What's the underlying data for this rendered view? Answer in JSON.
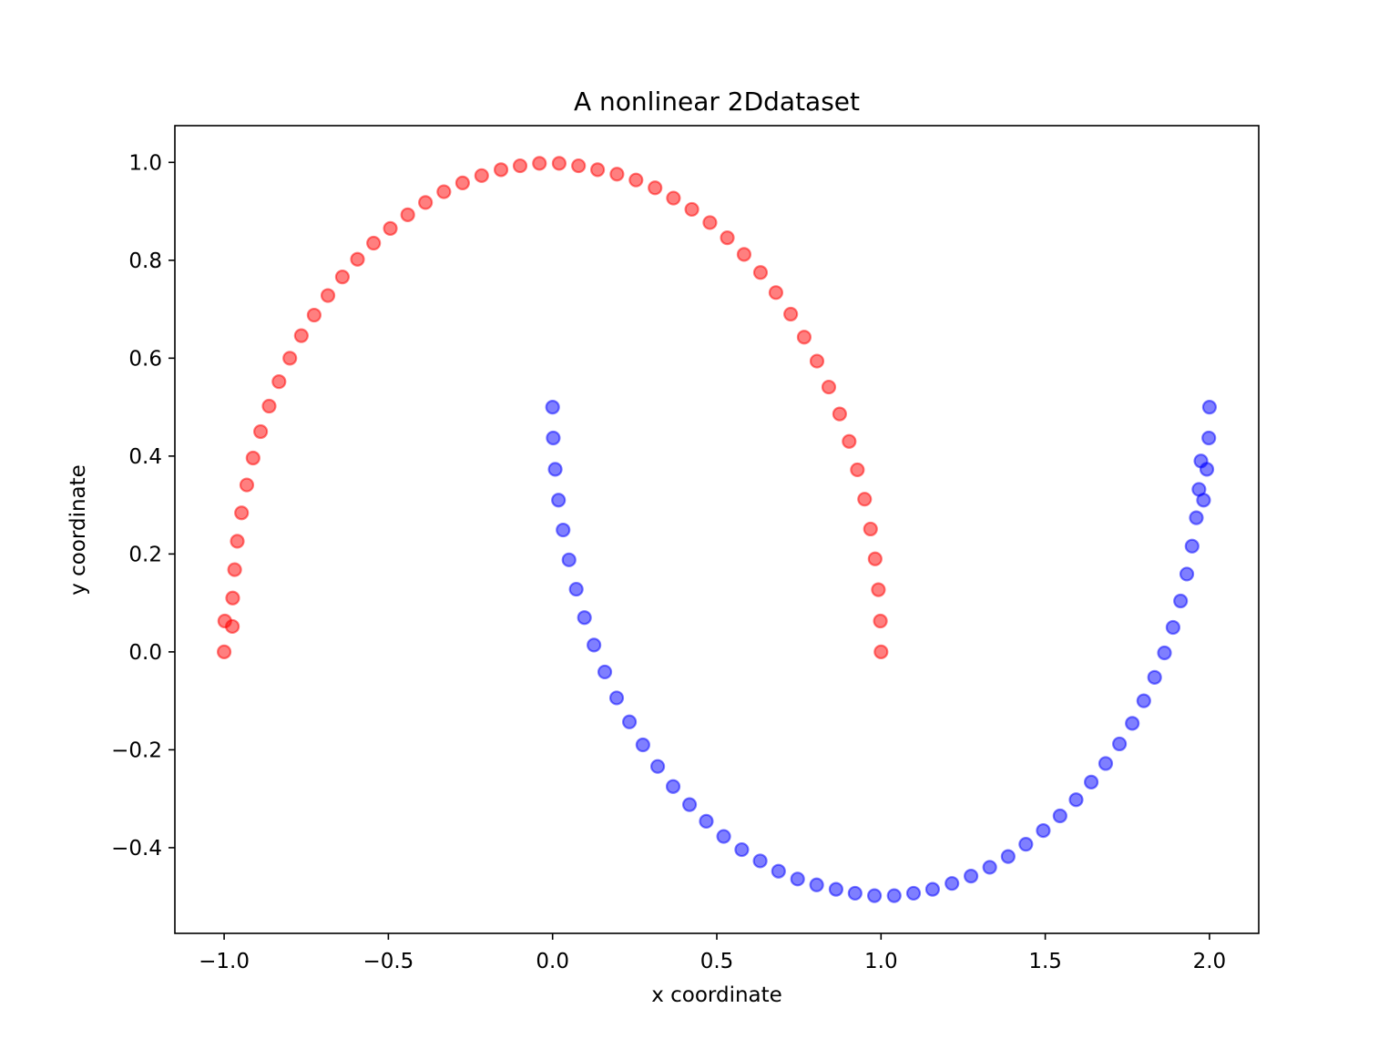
{
  "chart_data": {
    "type": "scatter",
    "title": "A nonlinear 2Ddataset",
    "xlabel": "x coordinate",
    "ylabel": "y coordinate",
    "xlim": [
      -1.15,
      2.15
    ],
    "ylim": [
      -0.575,
      1.075
    ],
    "grid": false,
    "xticks": [
      -1.0,
      -0.5,
      0.0,
      0.5,
      1.0,
      1.5,
      2.0
    ],
    "xtick_labels": [
      "−1.0",
      "−0.5",
      "0.0",
      "0.5",
      "1.0",
      "1.5",
      "2.0"
    ],
    "yticks": [
      -0.4,
      -0.2,
      0.0,
      0.2,
      0.4,
      0.6,
      0.8,
      1.0
    ],
    "ytick_labels": [
      "−0.4",
      "−0.2",
      "0.0",
      "0.2",
      "0.4",
      "0.6",
      "0.8",
      "1.0"
    ],
    "series": [
      {
        "color": "#ff0000",
        "alpha": 0.5,
        "x": [
          1.0,
          0.998,
          0.992,
          0.982,
          0.968,
          0.95,
          0.928,
          0.903,
          0.874,
          0.841,
          0.805,
          0.766,
          0.725,
          0.68,
          0.633,
          0.583,
          0.532,
          0.479,
          0.424,
          0.368,
          0.312,
          0.254,
          0.196,
          0.137,
          0.079,
          0.02,
          -0.04,
          -0.099,
          -0.157,
          -0.216,
          -0.274,
          -0.331,
          -0.387,
          -0.441,
          -0.494,
          -0.545,
          -0.594,
          -0.64,
          -0.684,
          -0.726,
          -0.765,
          -0.8,
          -0.833,
          -0.863,
          -0.889,
          -0.912,
          -0.931,
          -0.947,
          -0.96,
          -0.968,
          -0.974,
          -0.975,
          -0.998,
          -1.0
        ],
        "y": [
          0.0,
          0.063,
          0.127,
          0.19,
          0.251,
          0.312,
          0.372,
          0.43,
          0.486,
          0.541,
          0.594,
          0.643,
          0.69,
          0.734,
          0.775,
          0.812,
          0.846,
          0.877,
          0.904,
          0.927,
          0.948,
          0.964,
          0.976,
          0.985,
          0.993,
          0.998,
          0.998,
          0.993,
          0.985,
          0.973,
          0.958,
          0.94,
          0.918,
          0.893,
          0.865,
          0.835,
          0.802,
          0.766,
          0.728,
          0.688,
          0.646,
          0.6,
          0.552,
          0.502,
          0.45,
          0.396,
          0.341,
          0.284,
          0.226,
          0.168,
          0.11,
          0.052,
          0.063,
          0.0
        ]
      },
      {
        "color": "#0000ff",
        "alpha": 0.5,
        "x": [
          0.0,
          0.002,
          0.008,
          0.018,
          0.032,
          0.05,
          0.072,
          0.097,
          0.126,
          0.159,
          0.195,
          0.234,
          0.275,
          0.32,
          0.367,
          0.417,
          0.468,
          0.521,
          0.576,
          0.632,
          0.688,
          0.746,
          0.804,
          0.863,
          0.921,
          0.98,
          1.04,
          1.099,
          1.157,
          1.216,
          1.274,
          1.331,
          1.387,
          1.441,
          1.494,
          1.545,
          1.594,
          1.64,
          1.684,
          1.726,
          1.765,
          1.8,
          1.833,
          1.863,
          1.889,
          1.912,
          1.931,
          1.947,
          1.96,
          1.968,
          1.974,
          1.982,
          1.992,
          1.998,
          2.0
        ],
        "y": [
          0.5,
          0.437,
          0.373,
          0.31,
          0.249,
          0.188,
          0.128,
          0.07,
          0.014,
          -0.041,
          -0.094,
          -0.143,
          -0.19,
          -0.234,
          -0.275,
          -0.312,
          -0.346,
          -0.377,
          -0.404,
          -0.427,
          -0.448,
          -0.464,
          -0.476,
          -0.485,
          -0.493,
          -0.498,
          -0.498,
          -0.493,
          -0.485,
          -0.473,
          -0.458,
          -0.44,
          -0.418,
          -0.393,
          -0.365,
          -0.335,
          -0.302,
          -0.266,
          -0.228,
          -0.188,
          -0.146,
          -0.1,
          -0.052,
          -0.002,
          0.05,
          0.104,
          0.159,
          0.216,
          0.274,
          0.332,
          0.39,
          0.31,
          0.373,
          0.437,
          0.5
        ]
      }
    ]
  }
}
